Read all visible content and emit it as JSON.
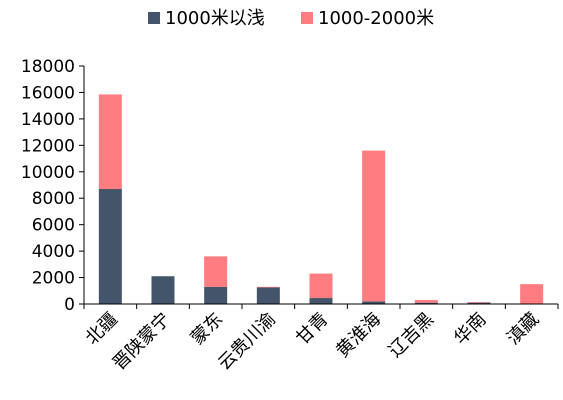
{
  "chart_data": {
    "type": "bar",
    "stacked": true,
    "categories": [
      "北疆",
      "晋陕蒙宁",
      "蒙东",
      "云贵川渝",
      "甘青",
      "黄淮海",
      "辽吉黑",
      "华南",
      "滇藏"
    ],
    "series": [
      {
        "name": "1000米以浅",
        "color": "#44546A",
        "values": [
          8700,
          2100,
          1300,
          1250,
          450,
          200,
          100,
          100,
          30
        ]
      },
      {
        "name": "1000-2000米",
        "color": "#FF7C80",
        "values": [
          7150,
          0,
          2300,
          50,
          1850,
          11400,
          200,
          50,
          1470
        ]
      }
    ],
    "yticks": [
      "0",
      "2000",
      "4000",
      "6000",
      "8000",
      "10000",
      "12000",
      "14000",
      "16000",
      "18000"
    ],
    "ylim": [
      0,
      18000
    ],
    "xlabel": "",
    "ylabel": "",
    "grid": false,
    "legend_position": "top"
  }
}
